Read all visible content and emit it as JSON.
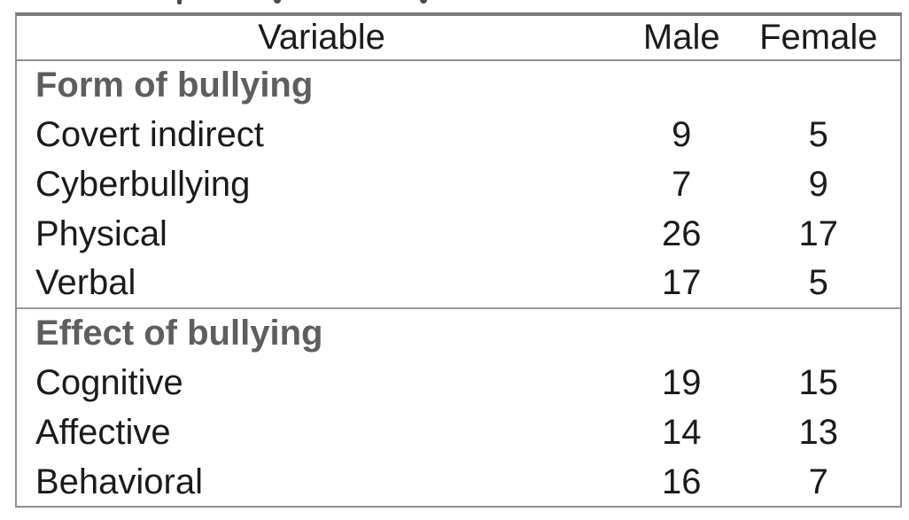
{
  "table": {
    "columns": [
      {
        "label": "Variable"
      },
      {
        "label": "Male"
      },
      {
        "label": "Female"
      }
    ],
    "sections": [
      {
        "header": "Form of bullying",
        "rows": [
          {
            "variable": "Covert indirect",
            "male": "9",
            "female": "5"
          },
          {
            "variable": "Cyberbullying",
            "male": "7",
            "female": "9"
          },
          {
            "variable": "Physical",
            "male": "26",
            "female": "17"
          },
          {
            "variable": "Verbal",
            "male": "17",
            "female": "5"
          }
        ]
      },
      {
        "header": "Effect of bullying",
        "rows": [
          {
            "variable": "Cognitive",
            "male": "19",
            "female": "15"
          },
          {
            "variable": "Affective",
            "male": "14",
            "female": "13"
          },
          {
            "variable": "Behavioral",
            "male": "16",
            "female": "7"
          }
        ]
      }
    ]
  },
  "colors": {
    "body_text": "#1b1b1b",
    "section_header_text": "#5e5e5e",
    "border": "#8f8f8f",
    "top_border": "#7a7a7a",
    "page_bg": "#ffffff"
  }
}
